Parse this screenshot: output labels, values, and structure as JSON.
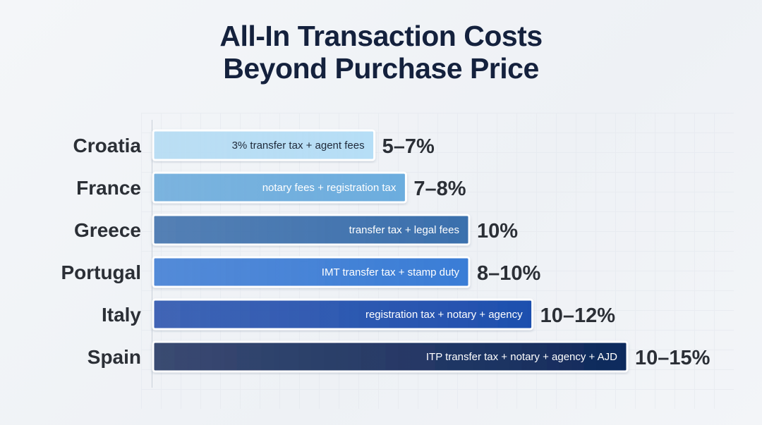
{
  "chart_data": {
    "type": "bar",
    "orientation": "horizontal",
    "title": "All-In Transaction Costs Beyond Purchase Price",
    "title_lines": [
      "All-In Transaction Costs",
      "Beyond Purchase Price"
    ],
    "categories": [
      "Croatia",
      "France",
      "Greece",
      "Portugal",
      "Italy",
      "Spain"
    ],
    "ranges": [
      [
        5,
        7
      ],
      [
        7,
        8
      ],
      [
        10,
        10
      ],
      [
        8,
        10
      ],
      [
        10,
        12
      ],
      [
        10,
        15
      ]
    ],
    "value_labels": [
      "5–7%",
      "7–8%",
      "10%",
      "8–10%",
      "10–12%",
      "10–15%"
    ],
    "bar_labels": [
      "3% transfer tax + agent fees",
      "notary fees + registration tax",
      "transfer tax + legal fees",
      "IMT transfer tax + stamp duty",
      "registration tax + notary + agency",
      "ITP transfer tax + notary + agency + AJD"
    ],
    "colors": [
      "#b6def6",
      "#6cadde",
      "#3b70ad",
      "#3a7dd6",
      "#1d4fae",
      "#0f2a5c"
    ],
    "label_colors": [
      "#1f2a3a",
      "#ffffff",
      "#ffffff",
      "#ffffff",
      "#ffffff",
      "#ffffff"
    ],
    "xlim": [
      0,
      15
    ],
    "grid": false
  }
}
